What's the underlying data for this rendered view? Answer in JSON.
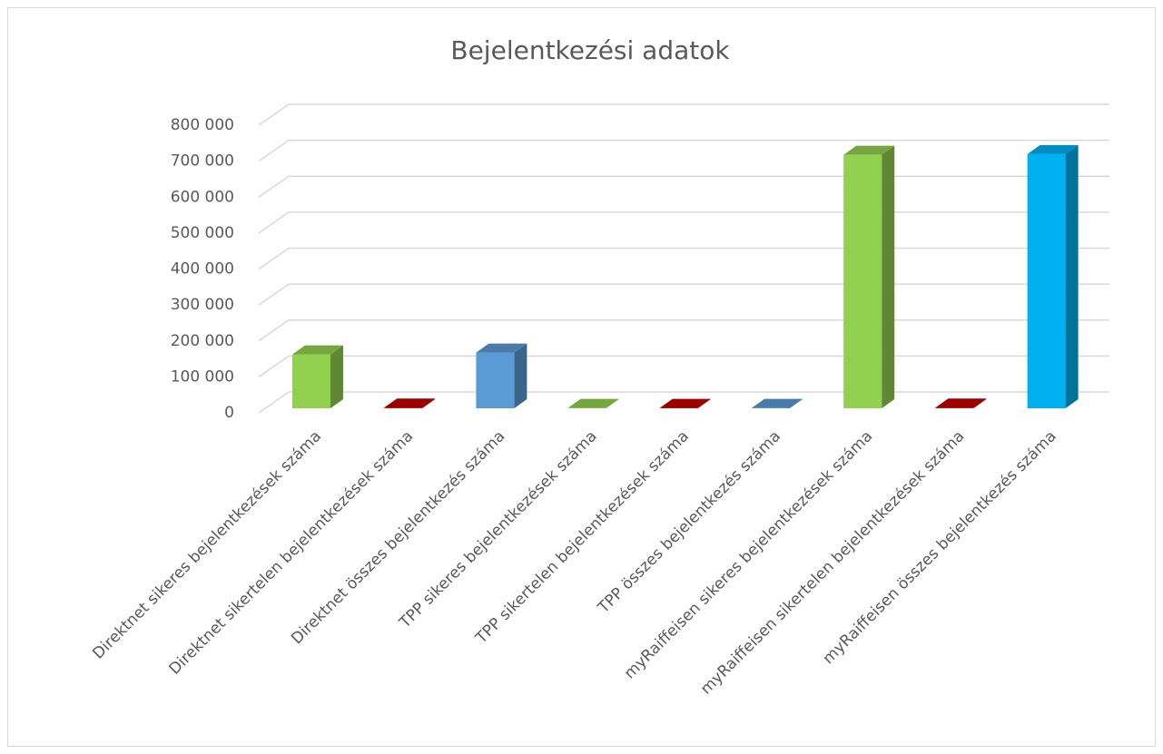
{
  "chart_data": {
    "type": "bar3d",
    "title": "Bejelentkezési adatok",
    "categories": [
      "Direktnet sikeres bejelentkezések száma",
      "Direktnet sikertelen bejelentkezések száma",
      "Direktnet összes bejelentkezés száma",
      "TPP sikeres bejelentkezések száma",
      "TPP sikertelen bejelentkezések száma",
      "TPP összes bejelentkezés száma",
      "myRaiffeisen sikeres bejelentkezések száma",
      "myRaiffeisen sikertelen bejelentkezések száma",
      "myRaiffeisen összes bejelentkezés száma"
    ],
    "values": [
      150000,
      2000,
      155000,
      1000,
      1000,
      1000,
      705000,
      2000,
      707000
    ],
    "colors": [
      "#92d050",
      "#c00000",
      "#5b9bd5",
      "#92d050",
      "#c00000",
      "#5b9bd5",
      "#92d050",
      "#c00000",
      "#00b0f0"
    ],
    "ylim": [
      0,
      800000
    ],
    "yticks": [
      {
        "value": 0,
        "label": "0"
      },
      {
        "value": 100000,
        "label": "100 000"
      },
      {
        "value": 200000,
        "label": "200 000"
      },
      {
        "value": 300000,
        "label": "300 000"
      },
      {
        "value": 400000,
        "label": "400 000"
      },
      {
        "value": 500000,
        "label": "500 000"
      },
      {
        "value": 600000,
        "label": "600 000"
      },
      {
        "value": 700000,
        "label": "700 000"
      },
      {
        "value": 800000,
        "label": "800 000"
      }
    ],
    "grid": true
  }
}
